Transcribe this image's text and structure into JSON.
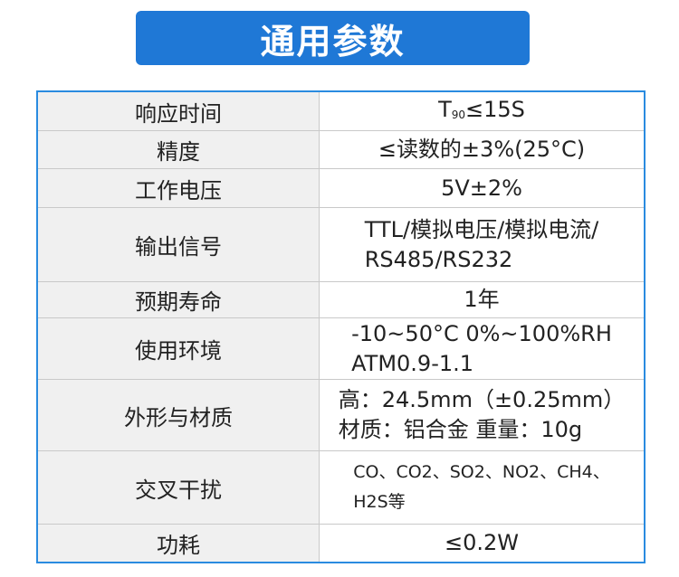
{
  "header": {
    "title": "通用参数"
  },
  "table": {
    "rows": [
      {
        "label": "响应时间",
        "value": {
          "text": "T",
          "subscript": "90",
          "rest": "≤15S"
        }
      },
      {
        "label": "精度",
        "lines": [
          "≤读数的±3%(25°C)"
        ]
      },
      {
        "label": "工作电压",
        "lines": [
          "5V±2%"
        ]
      },
      {
        "label": "输出信号",
        "lines": [
          "TTL/模拟电压/模拟电流/",
          "RS485/RS232"
        ]
      },
      {
        "label": "预期寿命",
        "lines": [
          "1年"
        ]
      },
      {
        "label": "使用环境",
        "lines": [
          "-10~50°C 0%~100%RH",
          "ATM0.9-1.1"
        ]
      },
      {
        "label": "外形与材质",
        "lines": [
          "高：24.5mm（±0.25mm）",
          "材质：铝合金  重量：10g"
        ]
      },
      {
        "label": "交叉干扰",
        "lines": [
          "CO、CO2、SO2、NO2、CH4、",
          "H2S等"
        ],
        "small": true
      },
      {
        "label": "功耗",
        "lines": [
          "≤0.2W"
        ]
      }
    ]
  }
}
